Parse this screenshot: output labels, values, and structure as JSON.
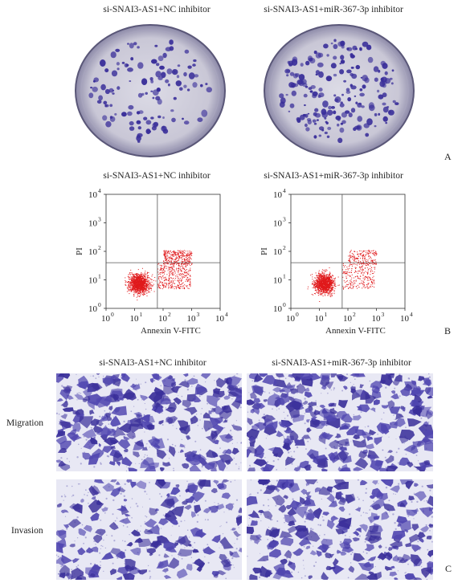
{
  "panel_a": {
    "letter": "A",
    "left_title": "si-SNAI3-AS1+NC inhibitor",
    "right_title": "si-SNAI3-AS1+miR-367-3p inhibitor"
  },
  "panel_b": {
    "letter": "B",
    "left_title": "si-SNAI3-AS1+NC inhibitor",
    "right_title": "si-SNAI3-AS1+miR-367-3p inhibitor",
    "chart_data": [
      {
        "type": "scatter",
        "title": "si-SNAI3-AS1+NC inhibitor",
        "xlabel": "Annexin V-FITC",
        "ylabel": "PI",
        "x_scale": "log",
        "y_scale": "log",
        "xlim": [
          1,
          10000
        ],
        "ylim": [
          1,
          10000
        ],
        "x_ticks": [
          "10",
          "10",
          "10",
          "10",
          "10"
        ],
        "x_tick_exponents": [
          "0",
          "1",
          "2",
          "3",
          "4"
        ],
        "y_ticks": [
          "10",
          "10",
          "10",
          "10",
          "10"
        ],
        "y_tick_exponents": [
          "0",
          "1",
          "2",
          "3",
          "4"
        ],
        "gate": {
          "x": 63,
          "y": 40
        },
        "series_color": "#e0191c",
        "grid": false
      },
      {
        "type": "scatter",
        "title": "si-SNAI3-AS1+miR-367-3p inhibitor",
        "xlabel": "Annexin V-FITC",
        "ylabel": "PI",
        "x_scale": "log",
        "y_scale": "log",
        "xlim": [
          1,
          10000
        ],
        "ylim": [
          1,
          10000
        ],
        "x_ticks": [
          "10",
          "10",
          "10",
          "10",
          "10"
        ],
        "x_tick_exponents": [
          "0",
          "1",
          "2",
          "3",
          "4"
        ],
        "y_ticks": [
          "10",
          "10",
          "10",
          "10",
          "10"
        ],
        "y_tick_exponents": [
          "0",
          "1",
          "2",
          "3",
          "4"
        ],
        "gate": {
          "x": 63,
          "y": 40
        },
        "series_color": "#e0191c",
        "grid": false
      }
    ]
  },
  "panel_c": {
    "letter": "C",
    "left_title": "si-SNAI3-AS1+NC inhibitor",
    "right_title": "si-SNAI3-AS1+miR-367-3p inhibitor",
    "row_labels": [
      "Migration",
      "Invasion"
    ]
  },
  "colors": {
    "stain": "#3a2f9a",
    "stain_light": "#8f8ad0",
    "membrane_bg": "#e8e8f4",
    "dish_bg": "#d6d4e0",
    "dot_red": "#e0191c"
  }
}
